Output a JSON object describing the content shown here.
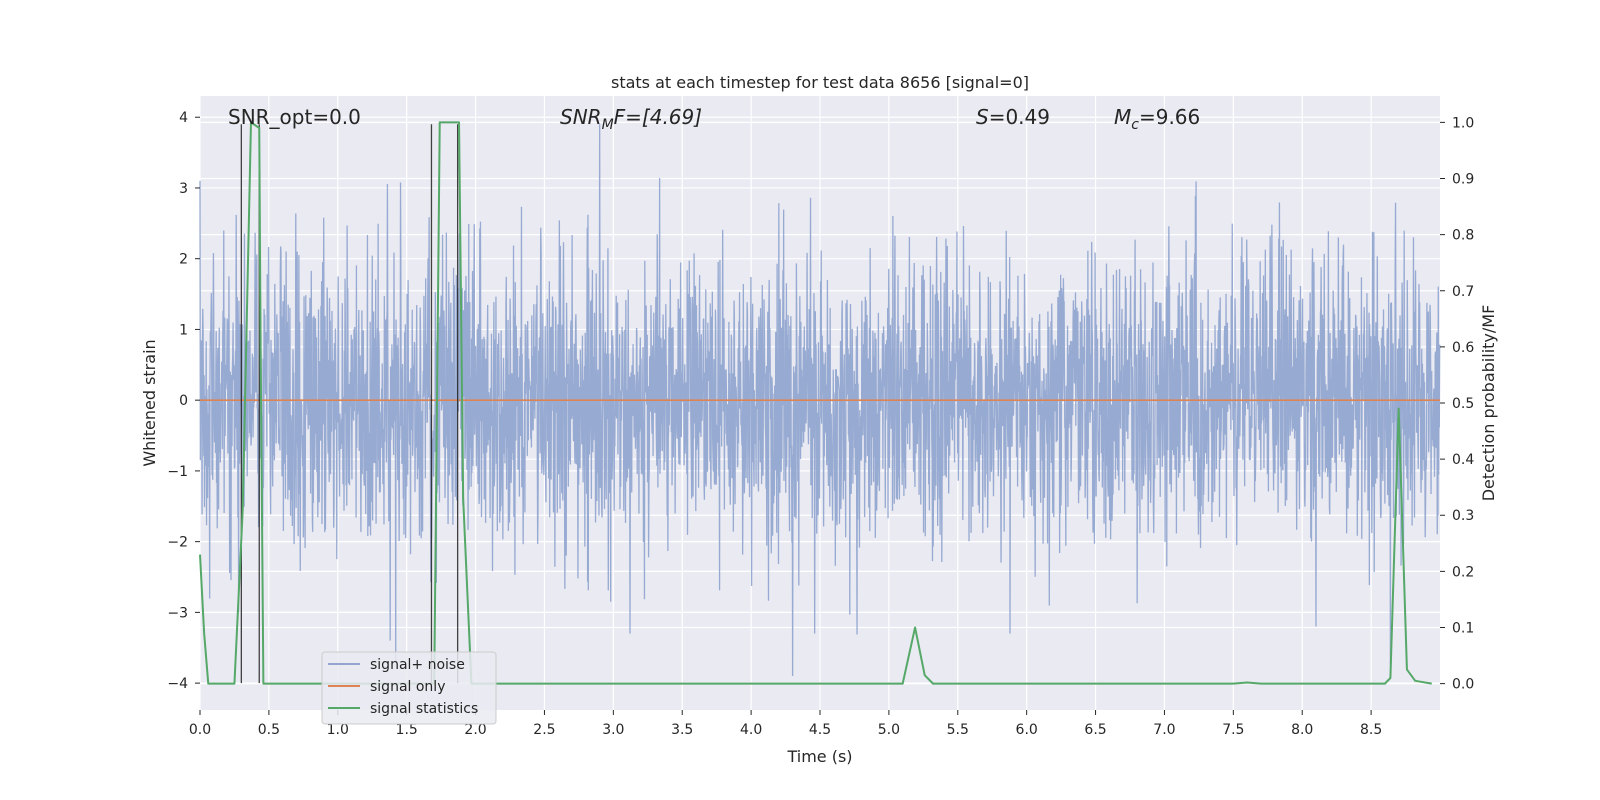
{
  "chart_data": {
    "type": "line",
    "title": "stats at each timestep for test data 8656 [signal=0]",
    "xlabel": "Time (s)",
    "ylabel_left": "Whitened strain",
    "ylabel_right": "Detection probability/MF",
    "xlim": [
      0,
      9.0
    ],
    "ylim_left": [
      -4.38,
      4.3
    ],
    "ylim_right": [
      -0.047,
      1.047
    ],
    "x_ticks": [
      0.0,
      0.5,
      1.0,
      1.5,
      2.0,
      2.5,
      3.0,
      3.5,
      4.0,
      4.5,
      5.0,
      5.5,
      6.0,
      6.5,
      7.0,
      7.5,
      8.0,
      8.5
    ],
    "x_tick_labels": [
      "0.0",
      "0.5",
      "1.0",
      "1.5",
      "2.0",
      "2.5",
      "3.0",
      "3.5",
      "4.0",
      "4.5",
      "5.0",
      "5.5",
      "6.0",
      "6.5",
      "7.0",
      "7.5",
      "8.0",
      "8.5"
    ],
    "y_left_ticks": [
      4,
      3,
      2,
      1,
      0,
      -1,
      -2,
      -3,
      -4
    ],
    "y_left_tick_labels": [
      "4",
      "3",
      "2",
      "1",
      "0",
      "−1",
      "−2",
      "−3",
      "−4"
    ],
    "y_right_ticks": [
      1.0,
      0.9,
      0.8,
      0.7,
      0.6,
      0.5,
      0.4,
      0.3,
      0.2,
      0.1,
      0.0
    ],
    "y_right_tick_labels": [
      "1.0",
      "0.9",
      "0.8",
      "0.7",
      "0.6",
      "0.5",
      "0.4",
      "0.3",
      "0.2",
      "0.1",
      "0.0"
    ],
    "grid": true,
    "legend": {
      "position": "lower-left",
      "entries": [
        {
          "label": "signal+ noise",
          "color": "#92a6d0"
        },
        {
          "label": "signal only",
          "color": "#dd8452"
        },
        {
          "label": "signal statistics",
          "color": "#55a868"
        }
      ]
    },
    "annotations": {
      "snr_opt": "SNR_opt=0.0",
      "snr_mf_main": "SNR",
      "snr_mf_sub": "M",
      "snr_mf_rest": "F=[4.69]",
      "s_italic": "S",
      "s_rest": "=0.49",
      "mc_main": "M",
      "mc_sub": "c",
      "mc_rest": "=9.66"
    },
    "series": [
      {
        "name": "signal+ noise",
        "axis": "left",
        "color": "#92a6d0",
        "description_noise": "whitened noise, approx. unit variance, sampled densely over 0–9 s",
        "envelope_abs_max": 3.9,
        "notable_spikes": [
          {
            "x": 0.0,
            "y": 3.1
          },
          {
            "x": 0.28,
            "y": -3.0
          },
          {
            "x": 1.38,
            "y": -3.4
          },
          {
            "x": 1.42,
            "y": -3.7
          },
          {
            "x": 2.9,
            "y": 3.95
          },
          {
            "x": 3.12,
            "y": -3.3
          },
          {
            "x": 4.3,
            "y": -4.05
          },
          {
            "x": 4.46,
            "y": -3.3
          },
          {
            "x": 5.88,
            "y": -3.3
          },
          {
            "x": 8.1,
            "y": -3.2
          }
        ]
      },
      {
        "name": "signal only",
        "axis": "left",
        "color": "#dd8452",
        "x": [
          0,
          9.0
        ],
        "y": [
          0,
          0
        ]
      },
      {
        "name": "signal statistics",
        "axis": "right",
        "color": "#55a868",
        "x": [
          0.0,
          0.03,
          0.06,
          0.25,
          0.31,
          0.37,
          0.43,
          0.44,
          0.46,
          1.7,
          1.74,
          1.88,
          1.91,
          1.97,
          5.1,
          5.19,
          5.26,
          5.32,
          7.5,
          7.6,
          7.7,
          8.6,
          8.64,
          8.7,
          8.76,
          8.82,
          8.94
        ],
        "y": [
          0.23,
          0.09,
          0.0,
          0.0,
          0.31,
          1.0,
          0.99,
          0.6,
          0.0,
          0.0,
          1.0,
          1.0,
          0.33,
          0.0,
          0.0,
          0.1,
          0.015,
          0.0,
          0.0,
          0.002,
          0.0,
          0.0,
          0.01,
          0.49,
          0.025,
          0.005,
          0.0
        ]
      },
      {
        "name": "marker lines",
        "axis": "left",
        "color": "#222222",
        "x": [
          0.3,
          0.43,
          1.68,
          1.87
        ],
        "y_from": -4.0,
        "y_to": 3.9
      }
    ]
  }
}
